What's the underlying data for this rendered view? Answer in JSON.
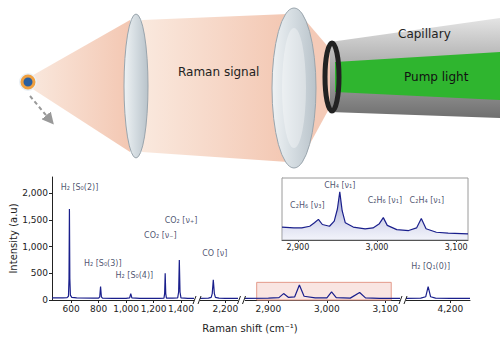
{
  "diagram": {
    "signal": "Raman signal",
    "capillary": "Capillary",
    "pump_light": "Pump light"
  },
  "chart_data": {
    "type": "line",
    "x_label": "Raman shift (cm⁻¹)",
    "y_label": "Intensity (a.u)",
    "ylim": [
      0,
      2300
    ],
    "yticks": [
      0,
      500,
      1000,
      1500,
      2000
    ],
    "color": "#1a1f8c",
    "grid": false,
    "panels": [
      {
        "xlim": [
          460,
          1495
        ],
        "xticks": [
          600,
          800,
          1000,
          1200,
          1400
        ],
        "x": [
          460,
          540,
          570,
          580,
          584,
          587,
          590,
          594,
          604,
          640,
          760,
          800,
          808,
          814,
          820,
          828,
          900,
          1000,
          1026,
          1034,
          1042,
          1100,
          1240,
          1276,
          1281,
          1285,
          1289,
          1294,
          1340,
          1376,
          1383,
          1388,
          1393,
          1400,
          1450,
          1495
        ],
        "values": [
          40,
          40,
          45,
          70,
          400,
          1700,
          400,
          90,
          50,
          40,
          35,
          35,
          60,
          250,
          60,
          35,
          30,
          30,
          40,
          120,
          40,
          30,
          30,
          35,
          120,
          500,
          120,
          35,
          35,
          40,
          150,
          750,
          150,
          40,
          30,
          30
        ],
        "annotations": [
          {
            "text": "H₂ [S₀(2)]",
            "x": 660,
            "y": 2030
          },
          {
            "text": "H₂ [S₀(3)]",
            "x": 830,
            "y": 600
          },
          {
            "text": "H₂ [S₀(4)]",
            "x": 1060,
            "y": 380
          },
          {
            "text": "CO₂ [ν₋]",
            "x": 1250,
            "y": 1130
          },
          {
            "text": "CO₂ [ν₊]",
            "x": 1400,
            "y": 1420
          }
        ]
      },
      {
        "xlim": [
          2080,
          2260
        ],
        "xticks": [
          2200
        ],
        "x": [
          2080,
          2120,
          2133,
          2138,
          2143,
          2148,
          2153,
          2170,
          2200,
          2260
        ],
        "values": [
          30,
          35,
          50,
          120,
          380,
          120,
          50,
          35,
          30,
          30
        ],
        "annotations": [
          {
            "text": "CO [ν]",
            "x": 2150,
            "y": 800
          }
        ]
      },
      {
        "xlim": [
          2860,
          3125
        ],
        "xticks": [
          2900,
          3000,
          3100
        ],
        "x": [
          2860,
          2900,
          2918,
          2926,
          2934,
          2945,
          2953,
          2961,
          2980,
          3000,
          3008,
          3016,
          3040,
          3056,
          3066,
          3090,
          3125
        ],
        "values": [
          30,
          35,
          45,
          120,
          50,
          60,
          280,
          70,
          40,
          40,
          150,
          45,
          35,
          140,
          40,
          30,
          30
        ],
        "highlight": {
          "xlim": [
            2880,
            3110
          ],
          "ylim": [
            0,
            330
          ]
        },
        "annotations": []
      },
      {
        "xlim": [
          4110,
          4240
        ],
        "xticks": [
          4200
        ],
        "x": [
          4110,
          4140,
          4150,
          4155,
          4160,
          4170,
          4200,
          4240
        ],
        "values": [
          30,
          35,
          60,
          250,
          60,
          35,
          30,
          30
        ],
        "annotations": [
          {
            "text": "H₂ [Q₁(0)]",
            "x": 4160,
            "y": 560
          }
        ]
      }
    ],
    "inset": {
      "type": "line",
      "xlim": [
        2880,
        3115
      ],
      "xticks": [
        2900,
        3000,
        3100
      ],
      "ylim": [
        20,
        380
      ],
      "tick_labels": "x",
      "x": [
        2880,
        2895,
        2905,
        2915,
        2921,
        2926,
        2931,
        2940,
        2946,
        2950,
        2953,
        2956,
        2960,
        2970,
        2985,
        2995,
        3003,
        3008,
        3013,
        3025,
        3040,
        3050,
        3056,
        3062,
        3075,
        3090,
        3115
      ],
      "values": [
        95,
        90,
        90,
        100,
        120,
        140,
        110,
        100,
        130,
        200,
        300,
        190,
        120,
        95,
        85,
        90,
        115,
        150,
        105,
        80,
        75,
        90,
        145,
        85,
        65,
        60,
        55
      ],
      "annotations": [
        {
          "text": "C₂H₆ [ν₃]",
          "x": 2912,
          "y": 200
        },
        {
          "text": "CH₄ [ν₁]",
          "x": 2953,
          "y": 315
        },
        {
          "text": "C₂H₆ [ν₁]",
          "x": 3010,
          "y": 225
        },
        {
          "text": "C₂H₄ [ν₁]",
          "x": 3063,
          "y": 225
        }
      ]
    }
  }
}
